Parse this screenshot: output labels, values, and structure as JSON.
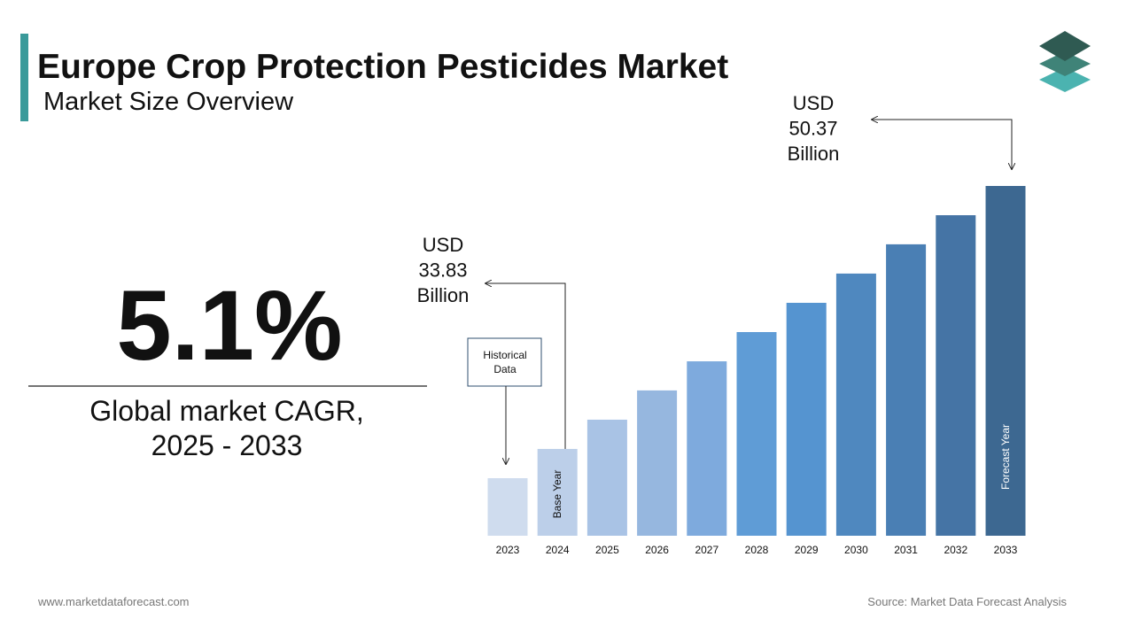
{
  "chart_data": {
    "type": "bar",
    "title": "Europe Crop Protection Pesticides Market",
    "subtitle": "Market Size Overview",
    "headline": "5.1%",
    "headline_caption": [
      "Global market CAGR,",
      "2025 - 2033"
    ],
    "categories": [
      "2023",
      "2024",
      "2025",
      "2026",
      "2027",
      "2028",
      "2029",
      "2030",
      "2031",
      "2032",
      "2033"
    ],
    "values": [
      31.99,
      33.83,
      35.67,
      37.51,
      39.34,
      41.18,
      43.02,
      44.86,
      46.7,
      48.53,
      50.37
    ],
    "colors": [
      "#cfdcee",
      "#bccfe9",
      "#a9c3e5",
      "#96b7df",
      "#7eaadd",
      "#5f9cd6",
      "#5594d0",
      "#4f88bf",
      "#4a7fb4",
      "#4574a5",
      "#3d6891"
    ],
    "ylim": [
      28.37,
      50.37
    ],
    "annotations": [
      {
        "lines": [
          "USD",
          "33.83",
          "Billion"
        ]
      },
      {
        "lines": [
          "USD",
          "50.37",
          "Billion"
        ]
      }
    ],
    "labels": {
      "historical": [
        "Historical",
        "Data"
      ],
      "base_year": "Base Year",
      "forecast_year": "Forecast Year"
    },
    "footer": {
      "website": "www.marketdataforecast.com",
      "source": "Source: Market Data Forecast Analysis"
    }
  }
}
